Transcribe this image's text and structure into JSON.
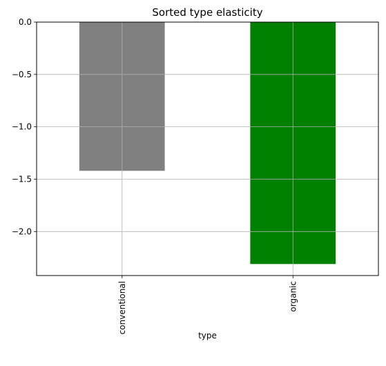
{
  "chart_data": {
    "type": "bar",
    "title": "Sorted type elasticity",
    "xlabel": "type",
    "ylabel": "",
    "categories": [
      "conventional",
      "organic"
    ],
    "values": [
      -1.42,
      -2.31
    ],
    "colors": [
      "#808080",
      "#008000"
    ],
    "ylim": [
      -2.42,
      0.0
    ],
    "yticks": [
      0.0,
      -0.5,
      -1.0,
      -1.5,
      -2.0
    ],
    "ytick_labels": [
      "0.0",
      "−0.5",
      "−1.0",
      "−1.5",
      "−2.0"
    ],
    "grid": true,
    "legend": false
  }
}
